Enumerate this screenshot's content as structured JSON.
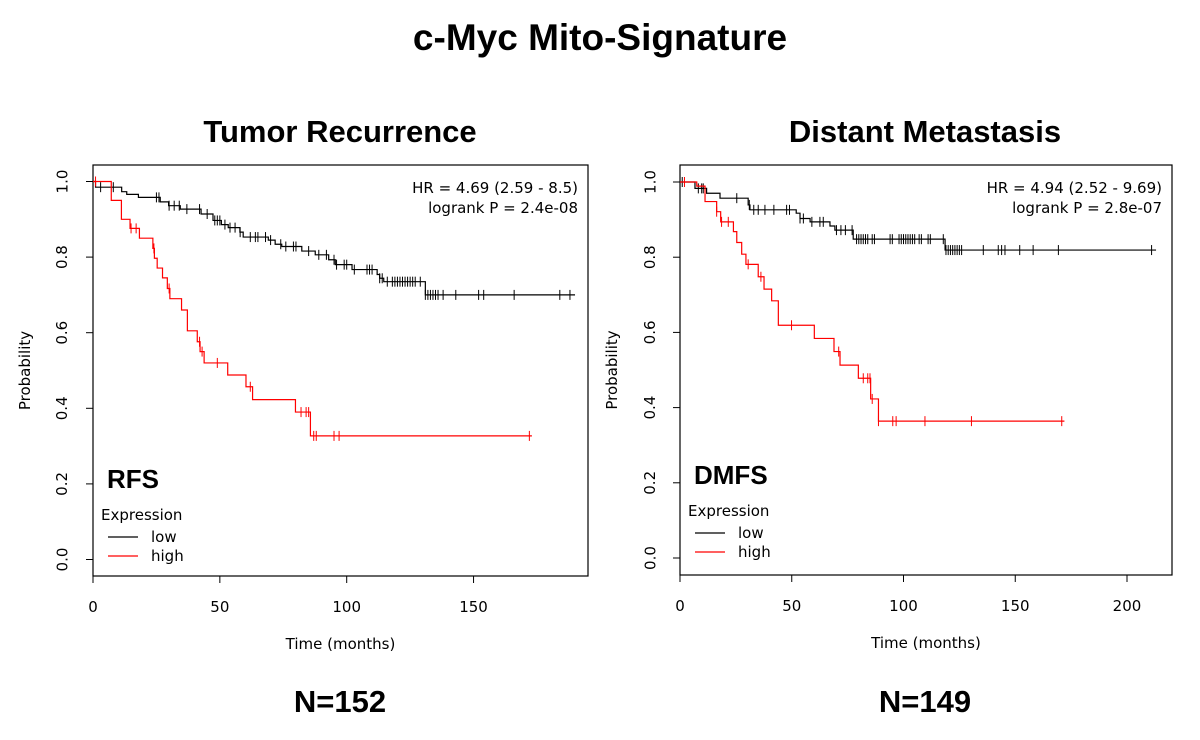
{
  "title": "c-Myc Mito-Signature",
  "colors": {
    "low": "#000000",
    "high": "#ff0000"
  },
  "chart_data": [
    {
      "type": "line",
      "subtype": "kaplan-meier",
      "title": "Tumor Recurrence",
      "endpoint_label": "RFS",
      "n_label": "N=152",
      "hr_text": "HR = 4.69 (2.59 - 8.5)",
      "logrank_text": "logrank P = 2.4e-08",
      "xlabel": "Time (months)",
      "ylabel": "Probability",
      "xticks": [
        "0",
        "50",
        "100",
        "150"
      ],
      "yticks": [
        "0.0",
        "0.2",
        "0.4",
        "0.6",
        "0.8",
        "1.0"
      ],
      "ylim": [
        0,
        1
      ],
      "legend": {
        "title": "Expression",
        "placement": "bottom-left",
        "entries": [
          "low",
          "high"
        ]
      },
      "series": [
        {
          "name": "low",
          "color": "#000000",
          "end_time": 190,
          "steps": [
            [
              0,
              1.0
            ],
            [
              1,
              0.985
            ],
            [
              11.3,
              0.973
            ],
            [
              13.3,
              0.966
            ],
            [
              17.9,
              0.958
            ],
            [
              26.5,
              0.946
            ],
            [
              29.8,
              0.936
            ],
            [
              34.4,
              0.927
            ],
            [
              42.6,
              0.914
            ],
            [
              47.3,
              0.897
            ],
            [
              50.6,
              0.886
            ],
            [
              53.3,
              0.878
            ],
            [
              57.9,
              0.866
            ],
            [
              59.2,
              0.853
            ],
            [
              69.1,
              0.845
            ],
            [
              71.8,
              0.834
            ],
            [
              74.4,
              0.828
            ],
            [
              82.3,
              0.816
            ],
            [
              87.6,
              0.806
            ],
            [
              92.9,
              0.793
            ],
            [
              95.5,
              0.78
            ],
            [
              102.1,
              0.767
            ],
            [
              112,
              0.754
            ],
            [
              113,
              0.744
            ],
            [
              114.6,
              0.735
            ],
            [
              131,
              0.7
            ]
          ],
          "censored": [
            3,
            8,
            25,
            26,
            30,
            32,
            34,
            37,
            42,
            45,
            48,
            49,
            50,
            52,
            54,
            56,
            58,
            62,
            64,
            65,
            68,
            70,
            74,
            76,
            79,
            80,
            85,
            89,
            92,
            95,
            96,
            99,
            100,
            103,
            108,
            109,
            110,
            113,
            114,
            116,
            118,
            119,
            120,
            121,
            122,
            123,
            124,
            125,
            126,
            127,
            129,
            131,
            132,
            133,
            134,
            135,
            136,
            138,
            143,
            152,
            154,
            166,
            184,
            188
          ]
        },
        {
          "name": "high",
          "color": "#ff0000",
          "end_time": 173,
          "steps": [
            [
              0,
              1.0
            ],
            [
              7.2,
              0.95
            ],
            [
              11.2,
              0.9
            ],
            [
              14.6,
              0.876
            ],
            [
              18.3,
              0.85
            ],
            [
              23.6,
              0.823
            ],
            [
              24.2,
              0.797
            ],
            [
              25.3,
              0.771
            ],
            [
              27.4,
              0.745
            ],
            [
              29.3,
              0.717
            ],
            [
              30.3,
              0.69
            ],
            [
              34.9,
              0.66
            ],
            [
              37.2,
              0.605
            ],
            [
              41.1,
              0.576
            ],
            [
              42.2,
              0.55
            ],
            [
              43.8,
              0.52
            ],
            [
              53.1,
              0.488
            ],
            [
              60.3,
              0.457
            ],
            [
              62.9,
              0.423
            ],
            [
              79.8,
              0.39
            ],
            [
              85.7,
              0.327
            ]
          ],
          "censored": [
            1,
            15,
            17,
            24,
            30,
            42,
            43,
            49,
            62,
            82,
            84,
            85,
            87,
            88,
            95,
            97,
            172
          ]
        }
      ]
    },
    {
      "type": "line",
      "subtype": "kaplan-meier",
      "title": "Distant Metastasis",
      "endpoint_label": "DMFS",
      "n_label": "N=149",
      "hr_text": "HR = 4.94 (2.52 - 9.69)",
      "logrank_text": "logrank P = 2.8e-07",
      "xlabel": "Time (months)",
      "ylabel": "Probability",
      "xticks": [
        "0",
        "50",
        "100",
        "150",
        "200"
      ],
      "yticks": [
        "0.0",
        "0.2",
        "0.4",
        "0.6",
        "0.8",
        "1.0"
      ],
      "ylim": [
        0,
        1
      ],
      "legend": {
        "title": "Expression",
        "placement": "bottom-left",
        "entries": [
          "low",
          "high"
        ]
      },
      "series": [
        {
          "name": "low",
          "color": "#000000",
          "end_time": 213,
          "steps": [
            [
              0,
              1.0
            ],
            [
              6.7,
              0.983
            ],
            [
              11.9,
              0.97
            ],
            [
              17.9,
              0.957
            ],
            [
              30.5,
              0.939
            ],
            [
              31.3,
              0.926
            ],
            [
              52,
              0.917
            ],
            [
              53.7,
              0.903
            ],
            [
              58.2,
              0.894
            ],
            [
              67.1,
              0.883
            ],
            [
              69.3,
              0.872
            ],
            [
              77.5,
              0.848
            ],
            [
              118.6,
              0.819
            ]
          ],
          "censored": [
            1,
            8.2,
            9.7,
            10.4,
            25.4,
            31,
            33,
            35,
            38,
            42,
            47.7,
            49,
            53.7,
            55.2,
            59,
            62.6,
            64.1,
            70,
            72,
            74,
            77,
            79,
            80,
            81,
            82,
            83,
            84,
            86,
            87,
            94,
            95,
            98,
            99,
            100,
            101,
            102,
            103,
            104,
            105,
            107,
            108,
            111,
            112,
            117.8,
            119,
            120,
            121,
            122,
            123,
            124,
            125,
            126,
            135.7,
            142.4,
            143.9,
            145.4,
            152,
            158,
            169.3,
            211
          ]
        },
        {
          "name": "high",
          "color": "#ff0000",
          "end_time": 172,
          "steps": [
            [
              0,
              1.0
            ],
            [
              7.5,
              0.989
            ],
            [
              11.2,
              0.948
            ],
            [
              16.4,
              0.921
            ],
            [
              18.2,
              0.894
            ],
            [
              23.9,
              0.868
            ],
            [
              25.4,
              0.839
            ],
            [
              27.6,
              0.808
            ],
            [
              29.5,
              0.781
            ],
            [
              35,
              0.748
            ],
            [
              37.6,
              0.715
            ],
            [
              41,
              0.684
            ],
            [
              44,
              0.619
            ],
            [
              60.1,
              0.584
            ],
            [
              68.9,
              0.549
            ],
            [
              71.6,
              0.513
            ],
            [
              79.8,
              0.478
            ],
            [
              85.3,
              0.423
            ],
            [
              88.8,
              0.364
            ]
          ],
          "censored": [
            2,
            16.4,
            18.6,
            21.6,
            30.5,
            36.2,
            49.9,
            71,
            82,
            84,
            85,
            86,
            88.8,
            95.2,
            96.7,
            109.6,
            130.4,
            170.8
          ]
        }
      ]
    }
  ]
}
